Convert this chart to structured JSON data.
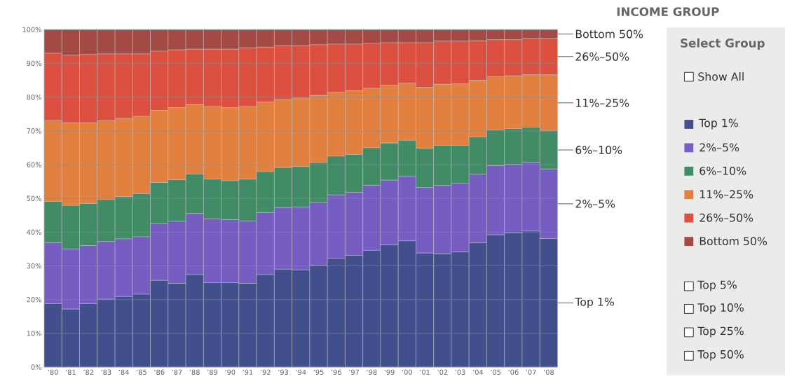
{
  "chart_data": {
    "type": "bar",
    "stacked": true,
    "title": "INCOME GROUP",
    "legend_title": "Select Group",
    "legend": "right",
    "grid": "y",
    "categories": [
      "’80",
      "’81",
      "’82",
      "’83",
      "’84",
      "’85",
      "’86",
      "’87",
      "’88",
      "’89",
      "’90",
      "’91",
      "’92",
      "’93",
      "’94",
      "’95",
      "’96",
      "’97",
      "’98",
      "’99",
      "’00",
      "’01",
      "’02",
      "’03",
      "’04",
      "’05",
      "’06",
      "’07",
      "’08"
    ],
    "ylim": [
      0,
      100
    ],
    "yticks": [
      {
        "value": 0,
        "label": "0%"
      },
      {
        "value": 10,
        "label": "10%"
      },
      {
        "value": 20,
        "label": "20%"
      },
      {
        "value": 30,
        "label": "30%"
      },
      {
        "value": 40,
        "label": "40%"
      },
      {
        "value": 50,
        "label": "50%"
      },
      {
        "value": 60,
        "label": "60%"
      },
      {
        "value": 70,
        "label": "70%"
      },
      {
        "value": 80,
        "label": "80%"
      },
      {
        "value": 90,
        "label": "90%"
      },
      {
        "value": 100,
        "label": "100%"
      }
    ],
    "series": [
      {
        "name": "Top 1%",
        "color": "#41508c",
        "values": [
          18.8,
          17.2,
          18.8,
          20.1,
          20.9,
          21.6,
          25.7,
          24.8,
          27.4,
          25.0,
          25.0,
          24.8,
          27.4,
          29.0,
          28.8,
          30.1,
          32.2,
          33.1,
          34.6,
          36.2,
          37.4,
          33.8,
          33.6,
          34.1,
          36.8,
          39.2,
          39.8,
          40.3,
          38.1
        ]
      },
      {
        "name": "2%–5%",
        "color": "#765dc2",
        "values": [
          18.0,
          17.8,
          17.2,
          17.1,
          17.1,
          17.0,
          16.8,
          18.4,
          18.1,
          18.9,
          18.7,
          18.5,
          18.4,
          18.3,
          18.6,
          18.7,
          18.8,
          18.7,
          19.3,
          19.2,
          19.2,
          19.4,
          20.2,
          20.3,
          20.4,
          20.5,
          20.3,
          20.4,
          20.6
        ]
      },
      {
        "name": "6%–10%",
        "color": "#418b67",
        "values": [
          12.3,
          12.9,
          12.5,
          12.4,
          12.5,
          12.8,
          12.2,
          12.3,
          11.7,
          11.8,
          11.5,
          12.4,
          12.1,
          11.8,
          12.0,
          11.8,
          11.5,
          11.2,
          11.1,
          11.0,
          10.6,
          11.6,
          11.9,
          11.3,
          11.0,
          10.6,
          10.6,
          10.4,
          11.3
        ]
      },
      {
        "name": "11%–25%",
        "color": "#e2803f",
        "values": [
          23.9,
          24.5,
          23.9,
          23.4,
          23.2,
          22.9,
          21.4,
          21.4,
          20.6,
          21.5,
          21.7,
          21.5,
          20.6,
          20.2,
          20.3,
          19.9,
          18.9,
          18.9,
          17.6,
          17.1,
          16.9,
          18.1,
          18.1,
          18.2,
          16.8,
          15.7,
          15.6,
          15.5,
          16.6
        ]
      },
      {
        "name": "26%–50%",
        "color": "#dc5040",
        "values": [
          20.0,
          20.0,
          20.2,
          19.8,
          19.1,
          18.5,
          17.5,
          17.1,
          16.4,
          17.0,
          17.3,
          17.4,
          16.3,
          15.9,
          15.5,
          15.0,
          14.3,
          13.8,
          13.3,
          12.6,
          12.0,
          13.2,
          12.8,
          12.7,
          11.7,
          11.0,
          10.7,
          10.8,
          10.8
        ]
      },
      {
        "name": "Bottom 50%",
        "color": "#a34a44",
        "values": [
          7.0,
          7.6,
          7.4,
          7.2,
          7.2,
          7.2,
          6.4,
          6.0,
          5.8,
          5.8,
          5.8,
          5.4,
          5.2,
          4.8,
          4.8,
          4.5,
          4.3,
          4.3,
          4.1,
          3.9,
          3.9,
          3.9,
          3.4,
          3.4,
          3.3,
          3.0,
          3.0,
          2.6,
          2.6
        ]
      }
    ],
    "annotations": [
      "Show All",
      "Top 5%",
      "Top 10%",
      "Top 25%",
      "Top 50%"
    ]
  }
}
